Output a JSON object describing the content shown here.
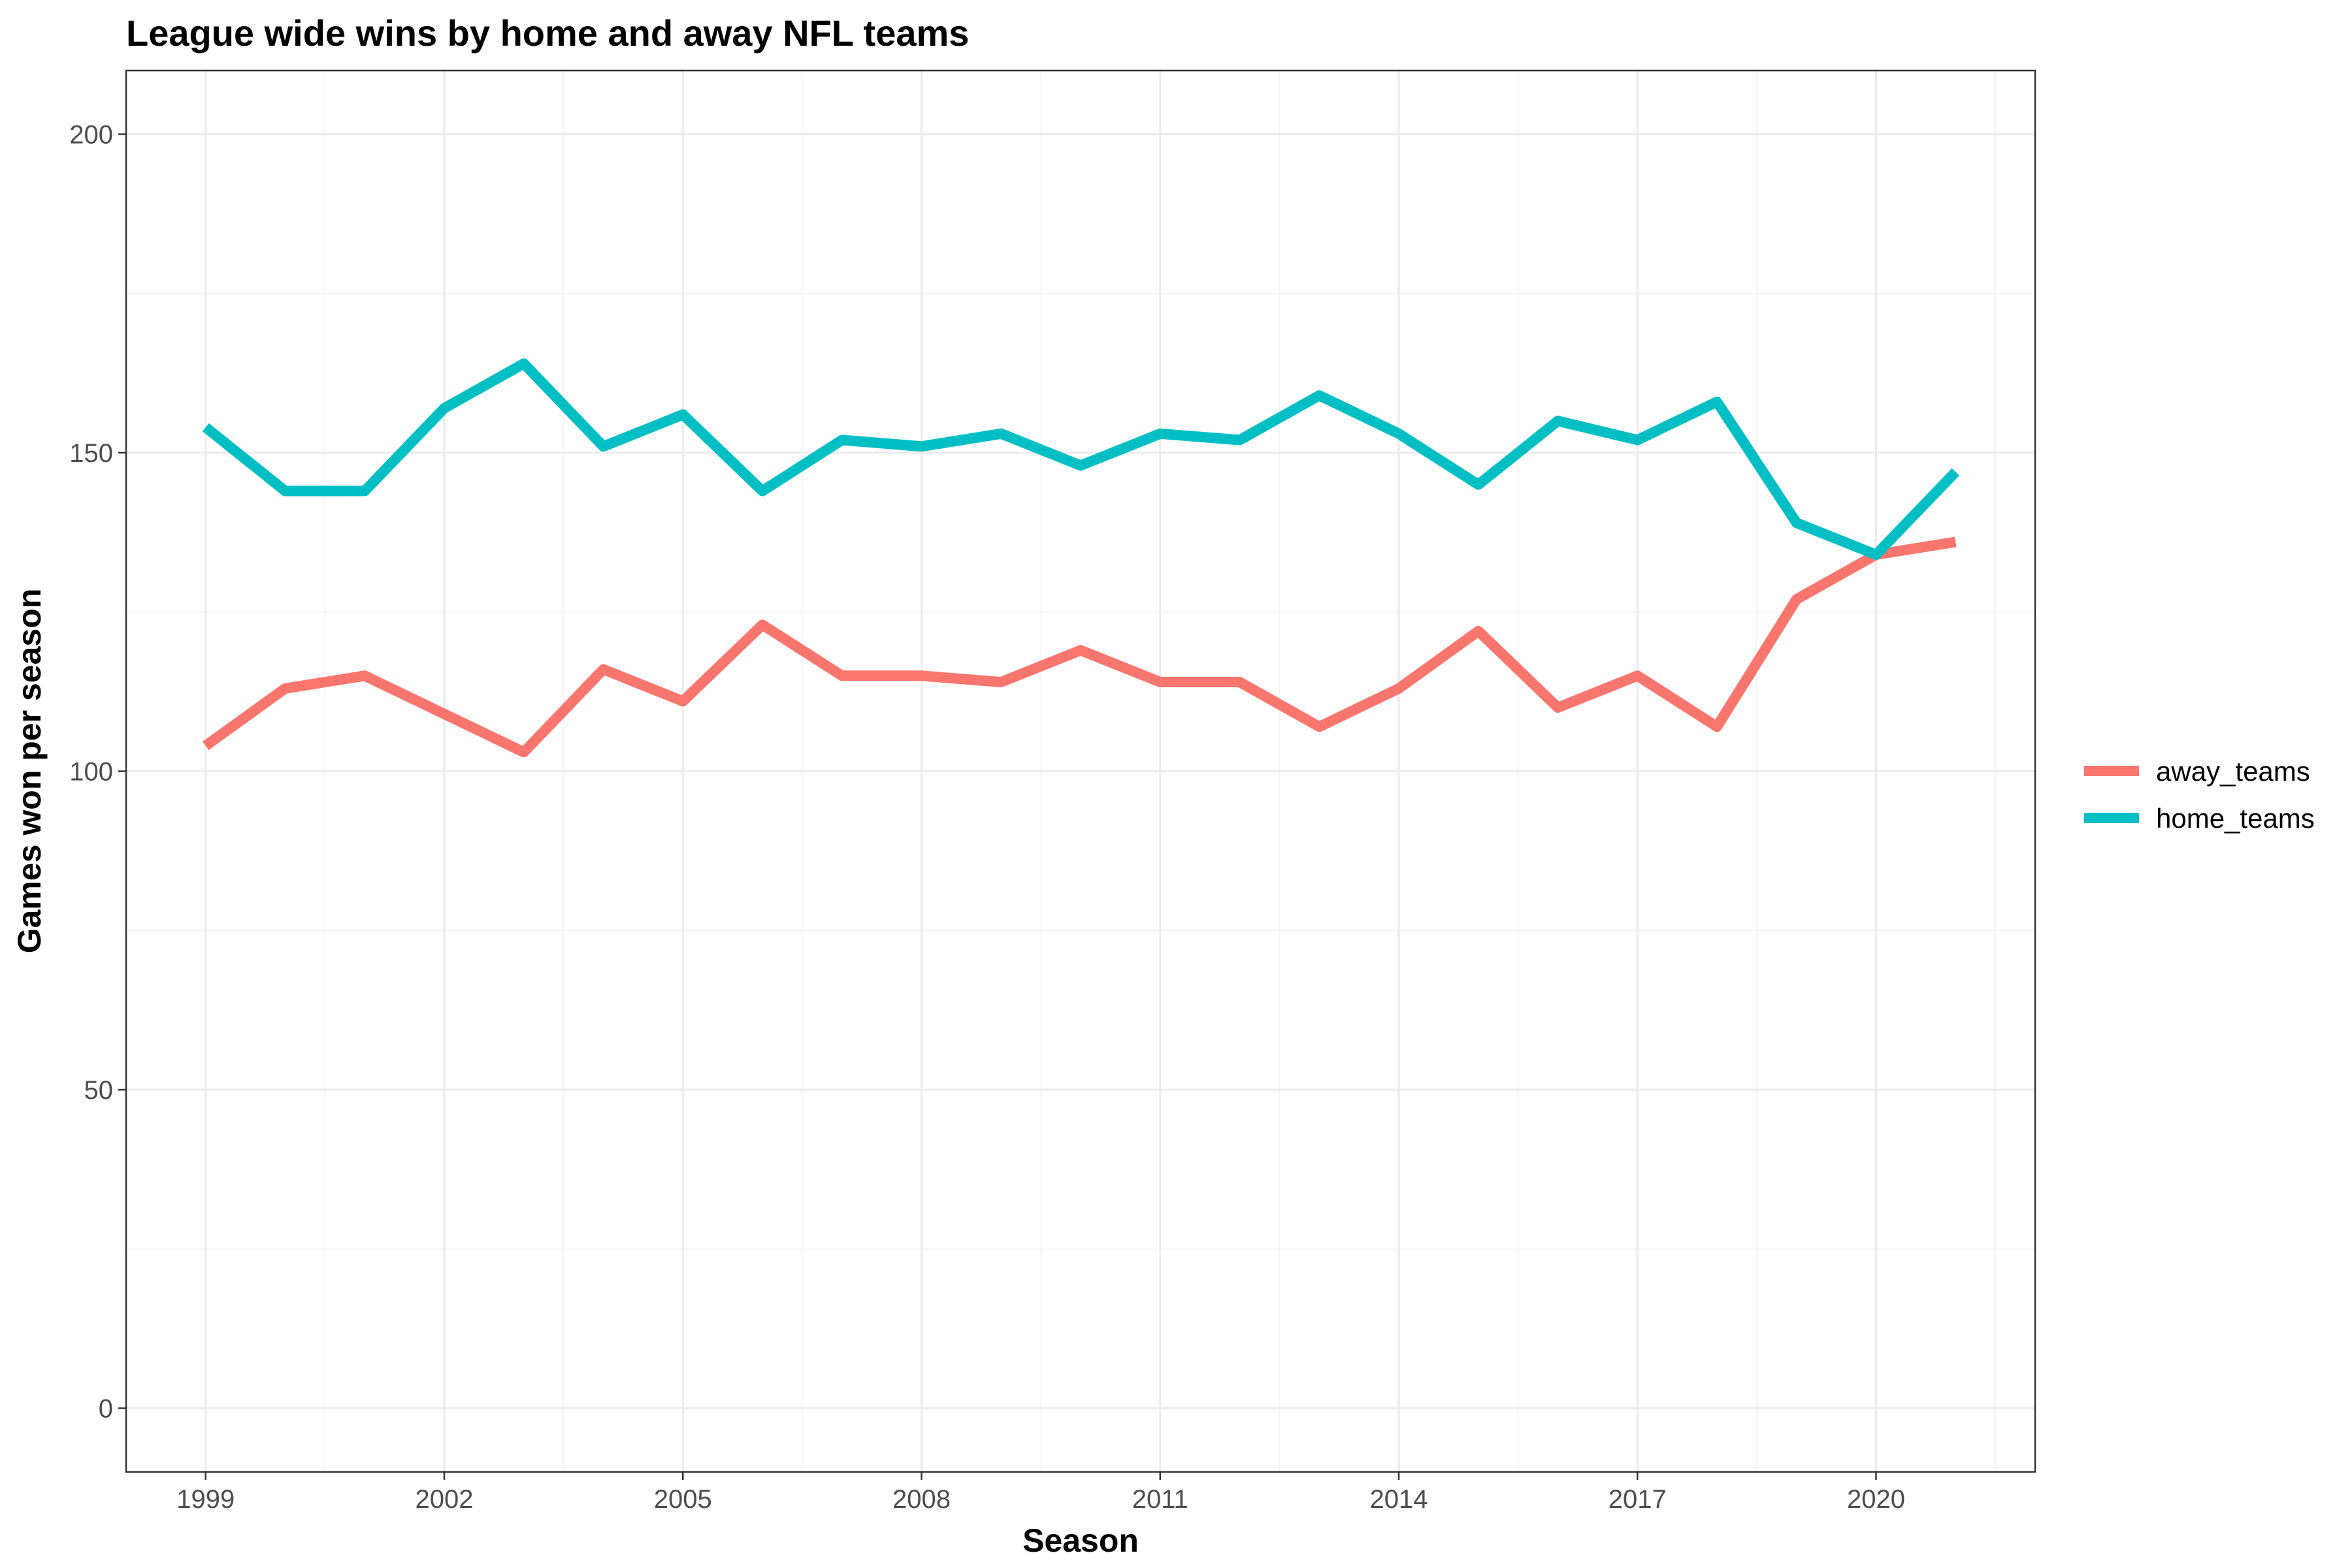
{
  "chart_data": {
    "type": "line",
    "title": "League wide wins by home and away NFL teams",
    "xlabel": "Season",
    "ylabel": "Games won per season",
    "xlim": [
      1998,
      2022
    ],
    "ylim": [
      -10,
      210
    ],
    "x_ticks": [
      1999,
      2002,
      2005,
      2008,
      2011,
      2014,
      2017,
      2020
    ],
    "y_ticks": [
      0,
      50,
      100,
      150,
      200
    ],
    "grid": true,
    "legend_position": "right",
    "x": [
      1999,
      2000,
      2001,
      2002,
      2003,
      2004,
      2005,
      2006,
      2007,
      2008,
      2009,
      2010,
      2011,
      2012,
      2013,
      2014,
      2015,
      2016,
      2017,
      2018,
      2019,
      2020,
      2021
    ],
    "series": [
      {
        "name": "away_teams",
        "color": "#F8766D",
        "values": [
          104,
          113,
          115,
          109,
          103,
          116,
          111,
          123,
          115,
          115,
          114,
          119,
          114,
          114,
          107,
          113,
          122,
          110,
          115,
          107,
          127,
          134,
          136
        ]
      },
      {
        "name": "home_teams",
        "color": "#00BFC4",
        "values": [
          154,
          144,
          144,
          157,
          164,
          151,
          156,
          144,
          152,
          151,
          153,
          148,
          153,
          152,
          159,
          153,
          145,
          155,
          152,
          158,
          139,
          134,
          147
        ]
      }
    ]
  }
}
